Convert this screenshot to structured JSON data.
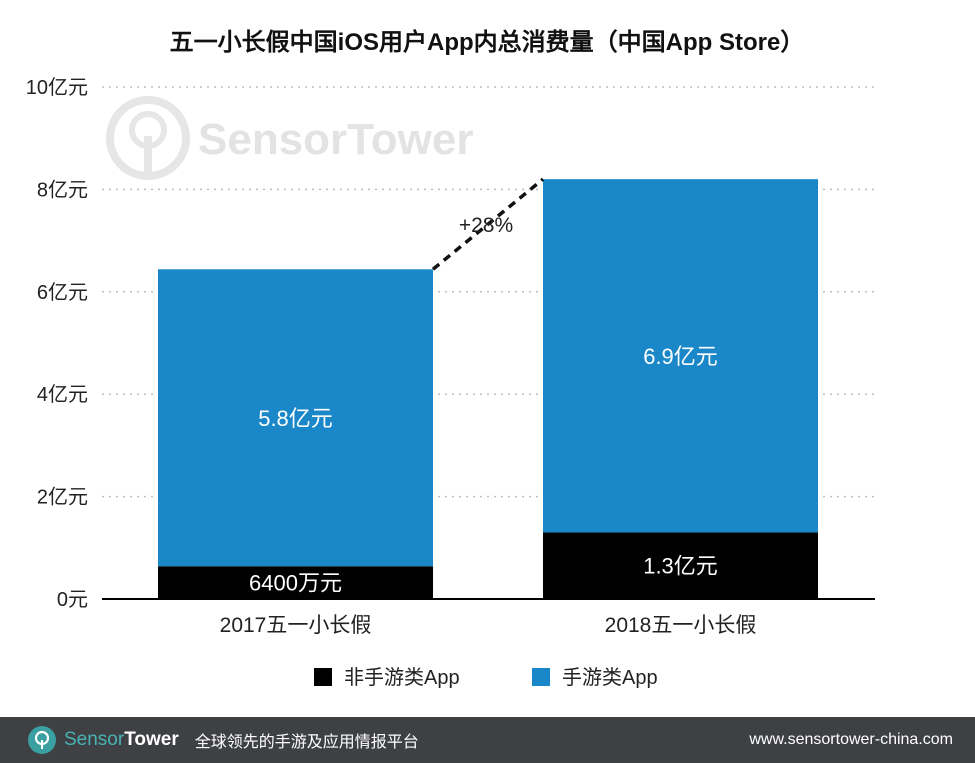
{
  "chart_data": {
    "type": "bar",
    "stacked": true,
    "title": "五一小长假中国iOS用户App内总消费量（中国App Store）",
    "categories": [
      "2017五一小长假",
      "2018五一小长假"
    ],
    "series": [
      {
        "name": "非手游类App",
        "color": "#000000",
        "values": [
          0.64,
          1.3
        ],
        "labels": [
          "6400万元",
          "1.3亿元"
        ]
      },
      {
        "name": "手游类App",
        "color": "#1a87c9",
        "values": [
          5.8,
          6.9
        ],
        "labels": [
          "5.8亿元",
          "6.9亿元"
        ]
      }
    ],
    "yticks": [
      {
        "value": 0,
        "label": "0元"
      },
      {
        "value": 2,
        "label": "2亿元"
      },
      {
        "value": 4,
        "label": "4亿元"
      },
      {
        "value": 6,
        "label": "6亿元"
      },
      {
        "value": 8,
        "label": "8亿元"
      },
      {
        "value": 10,
        "label": "10亿元"
      }
    ],
    "ylim": [
      0,
      10
    ],
    "grid": true,
    "legend_position": "bottom",
    "annotation": "+28%"
  },
  "watermark": {
    "brand_light": "Sensor",
    "brand_dark": "Tower"
  },
  "footer": {
    "brand_part1": "Sensor",
    "brand_part2": "Tower",
    "tagline": "全球领先的手游及应用情报平台",
    "url": "www.sensortower-china.com"
  },
  "colors": {
    "mobile_game": "#1a87c9",
    "non_game": "#000000",
    "footer_bg": "#3e4044",
    "brand_teal": "#3a9fa0"
  }
}
